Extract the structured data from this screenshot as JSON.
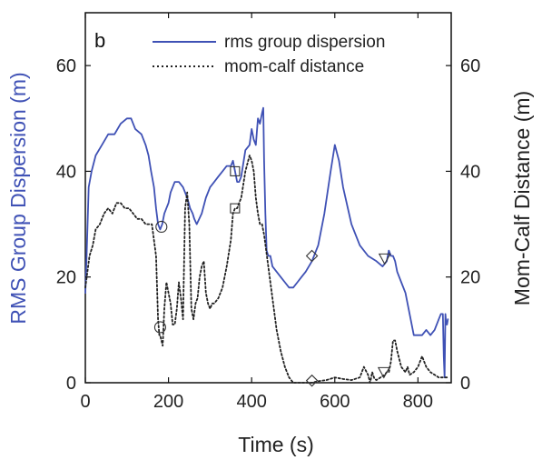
{
  "chart_data": {
    "type": "line",
    "panel_label": "b",
    "xlabel": "Time (s)",
    "ylabel_left": "RMS Group Dispersion (m)",
    "ylabel_right": "Mom-Calf Distance (m)",
    "xlim": [
      0,
      880
    ],
    "ylim": [
      0,
      70
    ],
    "xticks": [
      "0",
      "200",
      "400",
      "600",
      "800"
    ],
    "xtick_values": [
      0,
      200,
      400,
      600,
      800
    ],
    "yticks_left": [
      "0",
      "20",
      "40",
      "60"
    ],
    "yticks_right": [
      "0",
      "20",
      "40",
      "60"
    ],
    "ytick_values": [
      0,
      20,
      40,
      60
    ],
    "grid": false,
    "legend_position": "top-right",
    "colors": {
      "rms": "#3f51b5",
      "mom": "#222222",
      "left_axis_label": "#3f51b5",
      "right_axis_label": "#222222"
    },
    "series": [
      {
        "name": "rms group dispersion",
        "style": "solid",
        "x": [
          0,
          3,
          8,
          15,
          25,
          40,
          55,
          70,
          85,
          100,
          110,
          120,
          135,
          145,
          152,
          158,
          165,
          170,
          175,
          180,
          185,
          190,
          195,
          200,
          205,
          215,
          225,
          235,
          245,
          252,
          258,
          262,
          268,
          280,
          290,
          300,
          310,
          320,
          330,
          340,
          350,
          355,
          360,
          365,
          370,
          375,
          385,
          395,
          400,
          405,
          410,
          415,
          420,
          425,
          428,
          430,
          433,
          436,
          440,
          445,
          450,
          460,
          470,
          480,
          490,
          500,
          510,
          520,
          530,
          545,
          560,
          575,
          590,
          600,
          610,
          620,
          640,
          660,
          680,
          700,
          715,
          725,
          730,
          735,
          740,
          745,
          750,
          760,
          770,
          780,
          790,
          800,
          810,
          820,
          830,
          840,
          850,
          855,
          860,
          862,
          864,
          866,
          868,
          870,
          872
        ],
        "y": [
          17,
          24,
          37,
          40,
          43,
          45,
          47,
          47,
          49,
          50,
          50,
          48,
          47,
          45,
          43,
          40,
          37,
          33,
          30,
          29,
          30,
          32,
          33,
          34,
          36,
          38,
          38,
          37,
          35,
          33,
          32,
          31,
          30,
          32,
          35,
          37,
          38,
          39,
          40,
          41,
          41,
          42,
          40,
          38,
          38,
          39,
          44,
          45,
          48,
          46,
          45,
          50,
          49,
          51,
          52,
          42,
          32,
          25,
          24,
          24,
          22,
          21,
          20,
          19,
          18,
          18,
          19,
          20,
          21,
          23,
          26,
          32,
          40,
          45,
          42,
          37,
          30,
          26,
          24,
          23,
          22,
          23,
          25,
          24,
          24,
          23,
          21,
          19,
          17,
          13,
          9,
          9,
          9,
          10,
          9,
          10,
          12,
          13,
          13,
          5,
          1,
          13,
          11,
          11,
          12
        ],
        "markers": [
          {
            "x": 183,
            "y": 29.5,
            "shape": "circle"
          },
          {
            "x": 360,
            "y": 40,
            "shape": "square"
          },
          {
            "x": 545,
            "y": 24,
            "shape": "diamond"
          },
          {
            "x": 720,
            "y": 23.5,
            "shape": "triangle-down"
          }
        ]
      },
      {
        "name": "mom-calf distance",
        "style": "dotted",
        "x": [
          0,
          5,
          10,
          18,
          25,
          35,
          45,
          55,
          65,
          75,
          85,
          95,
          105,
          115,
          125,
          135,
          145,
          160,
          170,
          175,
          178,
          180,
          183,
          186,
          190,
          195,
          200,
          205,
          210,
          215,
          220,
          225,
          230,
          235,
          240,
          245,
          250,
          255,
          260,
          265,
          270,
          275,
          280,
          285,
          290,
          295,
          300,
          305,
          310,
          320,
          330,
          340,
          350,
          355,
          360,
          365,
          370,
          375,
          385,
          395,
          400,
          405,
          410,
          415,
          420,
          425,
          430,
          440,
          450,
          460,
          470,
          480,
          490,
          500,
          510,
          545,
          560,
          580,
          600,
          620,
          640,
          660,
          670,
          680,
          685,
          690,
          695,
          700,
          710,
          720,
          725,
          730,
          735,
          740,
          745,
          750,
          760,
          770,
          775,
          780,
          790,
          800,
          810,
          820,
          830,
          840,
          850,
          860,
          870
        ],
        "y": [
          18,
          21,
          24,
          26,
          29,
          30,
          32,
          33,
          32,
          34,
          34,
          33,
          33,
          32,
          31,
          31,
          30,
          30,
          24,
          12,
          9,
          9,
          8,
          7,
          14,
          19,
          17,
          15,
          11,
          11,
          14,
          19,
          16,
          12,
          33,
          36,
          30,
          14,
          12,
          15,
          16,
          20,
          22,
          23,
          17,
          15,
          14,
          15,
          15,
          16,
          18,
          22,
          27,
          32,
          33,
          33,
          34,
          35,
          40,
          43,
          42,
          40,
          35,
          32,
          30,
          30,
          28,
          22,
          16,
          10,
          6,
          3,
          1,
          0,
          0,
          0,
          0.3,
          0.5,
          1,
          0.7,
          0.5,
          1,
          3,
          1.5,
          0,
          2,
          0.8,
          0.5,
          1,
          1.5,
          2,
          2,
          4,
          8,
          8,
          6,
          3,
          2,
          3,
          1.5,
          2,
          3,
          5,
          3,
          2,
          1.5,
          1,
          1,
          1
        ],
        "markers": [
          {
            "x": 180,
            "y": 10.5,
            "shape": "circle"
          },
          {
            "x": 360,
            "y": 33,
            "shape": "square"
          },
          {
            "x": 545,
            "y": 0.4,
            "shape": "diamond"
          },
          {
            "x": 718,
            "y": 2,
            "shape": "triangle-down"
          }
        ]
      }
    ]
  }
}
